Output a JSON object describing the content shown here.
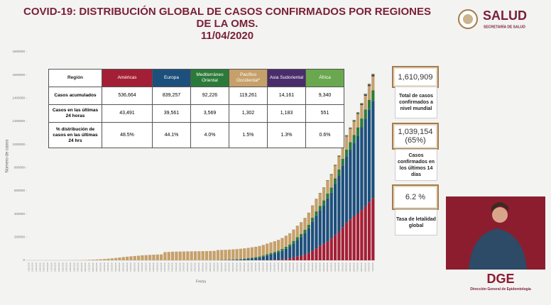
{
  "header": {
    "title_line1": "COVID-19: DISTRIBUCIÓN GLOBAL DE CASOS CONFIRMADOS POR REGIONES",
    "title_line2": "DE LA OMS.",
    "date": "11/04/2020",
    "logo": "SALUD",
    "logo_sub": "SECRETARÍA DE SALUD"
  },
  "chart_data": {
    "type": "bar",
    "stacked": true,
    "grid": false,
    "y_label": "Número de casos",
    "x_label": "Fecha",
    "ylim": [
      0,
      1800000
    ],
    "yticks": [
      0,
      200000,
      400000,
      600000,
      800000,
      1000000,
      1200000,
      1400000,
      1600000,
      1800000
    ],
    "categories": [
      "11/01/2020",
      "12/01/2020",
      "13/01/2020",
      "14/01/2020",
      "15/01/2020",
      "16/01/2020",
      "17/01/2020",
      "18/01/2020",
      "19/01/2020",
      "20/01/2020",
      "21/01/2020",
      "22/01/2020",
      "23/01/2020",
      "24/01/2020",
      "25/01/2020",
      "26/01/2020",
      "27/01/2020",
      "28/01/2020",
      "29/01/2020",
      "30/01/2020",
      "31/01/2020",
      "01/02/2020",
      "02/02/2020",
      "03/02/2020",
      "04/02/2020",
      "05/02/2020",
      "06/02/2020",
      "07/02/2020",
      "08/02/2020",
      "09/02/2020",
      "10/02/2020",
      "11/02/2020",
      "12/02/2020",
      "13/02/2020",
      "14/02/2020",
      "15/02/2020",
      "16/02/2020",
      "17/02/2020",
      "18/02/2020",
      "19/02/2020",
      "20/02/2020",
      "21/02/2020",
      "22/02/2020",
      "23/02/2020",
      "24/02/2020",
      "25/02/2020",
      "26/02/2020",
      "27/02/2020",
      "28/02/2020",
      "29/02/2020",
      "01/03/2020",
      "02/03/2020",
      "03/03/2020",
      "04/03/2020",
      "05/03/2020",
      "06/03/2020",
      "07/03/2020",
      "08/03/2020",
      "09/03/2020",
      "10/03/2020",
      "11/03/2020",
      "12/03/2020",
      "13/03/2020",
      "14/03/2020",
      "15/03/2020",
      "16/03/2020",
      "17/03/2020",
      "18/03/2020",
      "19/03/2020",
      "20/03/2020",
      "21/03/2020",
      "22/03/2020",
      "23/03/2020",
      "24/03/2020",
      "25/03/2020",
      "26/03/2020",
      "27/03/2020",
      "28/03/2020",
      "29/03/2020",
      "30/03/2020",
      "31/03/2020",
      "01/04/2020",
      "02/04/2020",
      "03/04/2020",
      "04/04/2020",
      "05/04/2020",
      "06/04/2020",
      "07/04/2020",
      "08/04/2020",
      "09/04/2020",
      "10/04/2020",
      "11/04/2020"
    ],
    "series": [
      {
        "name": "Américas",
        "color": "#a31f35",
        "values": [
          0,
          0,
          0,
          0,
          0,
          0,
          0,
          0,
          0,
          0,
          1,
          1,
          1,
          2,
          2,
          5,
          5,
          5,
          6,
          6,
          9,
          8,
          11,
          11,
          11,
          12,
          12,
          12,
          12,
          12,
          13,
          14,
          14,
          15,
          15,
          15,
          15,
          15,
          15,
          15,
          15,
          15,
          15,
          35,
          35,
          35,
          53,
          53,
          60,
          60,
          68,
          88,
          116,
          157,
          225,
          281,
          406,
          493,
          657,
          863,
          1162,
          1526,
          2202,
          2882,
          3458,
          4402,
          5705,
          7844,
          11542,
          16484,
          25000,
          31883,
          38984,
          49444,
          62229,
          82213,
          103321,
          123650,
          142081,
          163000,
          188000,
          216000,
          245000,
          287000,
          325000,
          353000,
          380000,
          407000,
          435000,
          466000,
          501000,
          536664
        ]
      },
      {
        "name": "Europa",
        "color": "#1d4f7c",
        "values": [
          0,
          0,
          0,
          0,
          0,
          0,
          0,
          0,
          0,
          0,
          0,
          0,
          0,
          3,
          3,
          4,
          4,
          7,
          9,
          10,
          16,
          23,
          28,
          30,
          30,
          30,
          31,
          31,
          38,
          41,
          45,
          45,
          46,
          46,
          46,
          46,
          46,
          46,
          47,
          47,
          47,
          47,
          47,
          47,
          161,
          228,
          321,
          421,
          577,
          844,
          1199,
          1999,
          2199,
          3055,
          4250,
          5544,
          7270,
          9043,
          11383,
          14924,
          17456,
          21879,
          29075,
          38173,
          46767,
          53598,
          62218,
          73359,
          87102,
          99947,
          120208,
          143216,
          162513,
          185731,
          214373,
          252812,
          283237,
          308608,
          334018,
          370400,
          393965,
          442400,
          487100,
          532000,
          568700,
          601700,
          634200,
          668300,
          713000,
          755000,
          797300,
          839257
        ]
      },
      {
        "name": "Mediterráneo Oriental",
        "color": "#2c7a3a",
        "values": [
          0,
          0,
          0,
          0,
          0,
          0,
          0,
          0,
          0,
          0,
          0,
          0,
          0,
          0,
          0,
          0,
          0,
          0,
          4,
          4,
          4,
          5,
          5,
          5,
          5,
          5,
          5,
          7,
          7,
          7,
          7,
          7,
          8,
          8,
          8,
          8,
          8,
          8,
          9,
          9,
          10,
          11,
          24,
          53,
          84,
          108,
          152,
          239,
          336,
          457,
          627,
          816,
          1163,
          1502,
          2011,
          2710,
          3543,
          4658,
          6041,
          7340,
          8495,
          9566,
          10593,
          11826,
          13011,
          14458,
          15814,
          17396,
          18934,
          20589,
          22229,
          24254,
          26201,
          28235,
          30478,
          32999,
          35532,
          38117,
          40833,
          43940,
          46329,
          49000,
          53000,
          58000,
          62000,
          65300,
          68500,
          72000,
          76000,
          81700,
          87400,
          92226
        ]
      },
      {
        "name": "Pacífico Occidental*",
        "color": "#c6a06a",
        "values": [
          41,
          41,
          41,
          42,
          42,
          42,
          45,
          62,
          201,
          291,
          440,
          571,
          830,
          1287,
          1975,
          2744,
          4515,
          5974,
          7711,
          9692,
          11791,
          14380,
          17205,
          20438,
          24324,
          28018,
          31161,
          34546,
          37198,
          40171,
          42638,
          44653,
          46550,
          48548,
          50054,
          51174,
          70635,
          72528,
          74280,
          75101,
          75891,
          76288,
          76936,
          77150,
          77658,
          78064,
          78497,
          78824,
          79251,
          79824,
          86604,
          86990,
          87317,
          87745,
          88160,
          88369,
          88740,
          89069,
          89373,
          89581,
          89861,
          90180,
          90458,
          90836,
          91203,
          91779,
          92322,
          93349,
          94211,
          95468,
          96597,
          97843,
          99078,
          100159,
          101521,
          102888,
          104868,
          106422,
          107500,
          108600,
          109700,
          110800,
          111600,
          112400,
          113300,
          114200,
          115000,
          115800,
          116600,
          117400,
          118300,
          119261
        ]
      },
      {
        "name": "Asia Sudoriental",
        "color": "#4a2c6b",
        "values": [
          0,
          0,
          1,
          1,
          1,
          1,
          2,
          2,
          2,
          2,
          2,
          2,
          4,
          4,
          4,
          4,
          4,
          5,
          5,
          6,
          8,
          8,
          8,
          8,
          8,
          8,
          8,
          8,
          9,
          9,
          9,
          9,
          9,
          9,
          9,
          9,
          9,
          9,
          9,
          9,
          9,
          9,
          9,
          9,
          9,
          9,
          9,
          9,
          9,
          9,
          12,
          12,
          12,
          14,
          18,
          20,
          44,
          58,
          64,
          66,
          69,
          81,
          90,
          113,
          133,
          167,
          193,
          262,
          313,
          366,
          455,
          533,
          609,
          820,
          993,
          1143,
          1368,
          1604,
          1788,
          2173,
          2555,
          3000,
          3600,
          4500,
          5300,
          6100,
          7000,
          8000,
          9300,
          11000,
          12500,
          14161
        ]
      },
      {
        "name": "África",
        "color": "#6aa84f",
        "values": [
          0,
          0,
          0,
          0,
          0,
          0,
          0,
          0,
          0,
          0,
          0,
          0,
          0,
          0,
          0,
          0,
          0,
          0,
          0,
          0,
          0,
          0,
          0,
          0,
          0,
          0,
          0,
          0,
          0,
          0,
          0,
          0,
          0,
          0,
          1,
          1,
          1,
          1,
          1,
          1,
          1,
          1,
          1,
          1,
          1,
          1,
          2,
          2,
          3,
          3,
          3,
          4,
          4,
          6,
          8,
          12,
          15,
          27,
          47,
          59,
          70,
          93,
          110,
          165,
          216,
          250,
          338,
          399,
          525,
          663,
          921,
          1090,
          1301,
          1470,
          1720,
          2100,
          2515,
          3012,
          3471,
          3950,
          4560,
          5200,
          5700,
          6300,
          6900,
          7300,
          7700,
          8000,
          8400,
          8700,
          9000,
          9340
        ]
      }
    ]
  },
  "table": {
    "header": [
      "Región",
      "Américas",
      "Europa",
      "Mediterráneo Oriental",
      "Pacífico Occidental*",
      "Asia Sudoriental",
      "África"
    ],
    "rows": [
      [
        "Casos acumulados",
        "536,664",
        "839,257",
        "92,226",
        "119,261",
        "14,161",
        "9,340"
      ],
      [
        "Casos en las últimas 24 horas",
        "43,491",
        "39,561",
        "3,569",
        "1,302",
        "1,183",
        "551"
      ],
      [
        "% distribución de casos en las últimas 24 hrs",
        "48.5%",
        "44.1%",
        "4.0%",
        "1.5%",
        "1.3%",
        "0.6%"
      ]
    ]
  },
  "summary": [
    {
      "value": "1,610,909",
      "label": "Total de casos confirmados a nivel mundial"
    },
    {
      "value": "1,039,154 (65%)",
      "label": "Casos confirmados en los últimos 14 días"
    },
    {
      "value": "6.2 %",
      "label": "Tasa de letalidad global"
    }
  ],
  "footer": {
    "logo": "DGE",
    "org": "Dirección General de Epidemiología"
  }
}
